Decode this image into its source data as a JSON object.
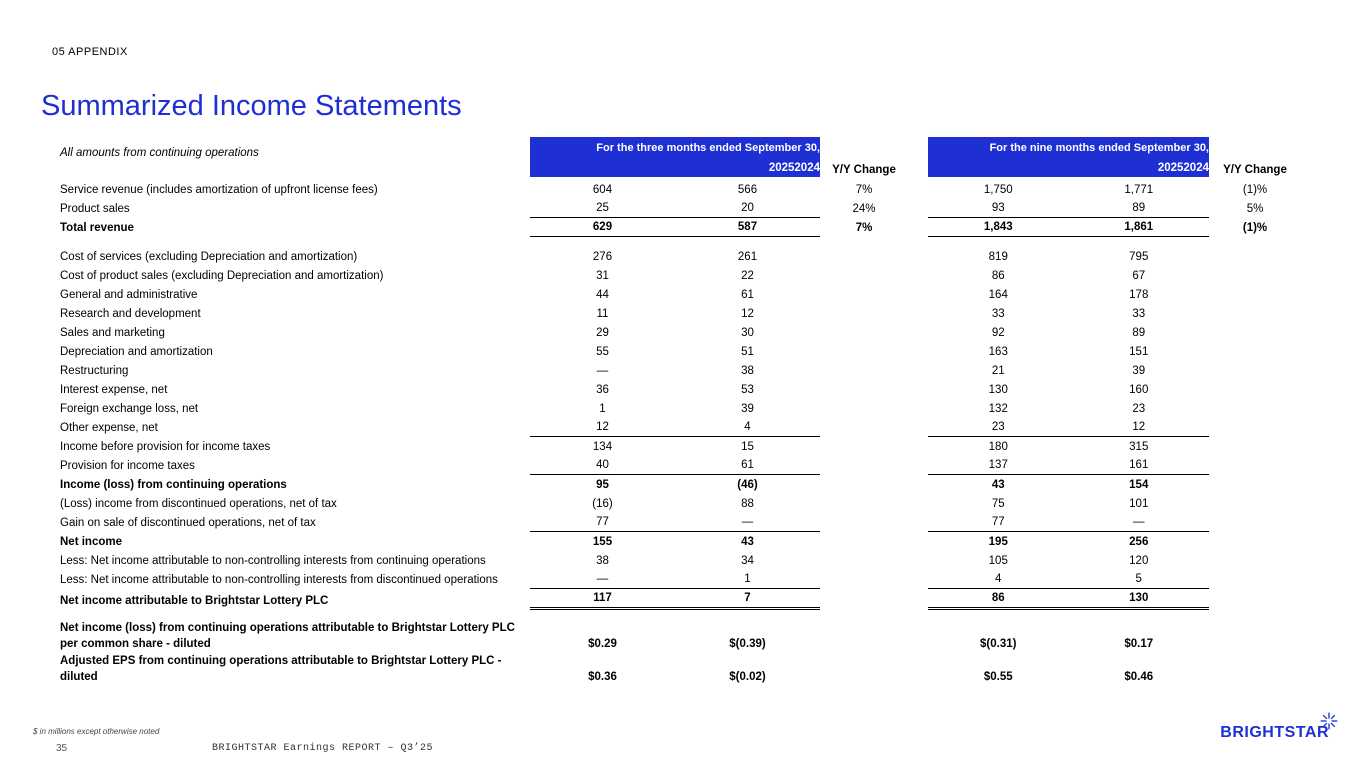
{
  "slide": {
    "section_label": "05 APPENDIX",
    "title": "Summarized Income Statements",
    "subtitle": "All amounts from continuing operations",
    "footnote": "$ in millions except otherwise noted",
    "page_number": "35",
    "footer_text": "BRIGHTSTAR Earnings REPORT – Q3’25",
    "logo_text": "BRIGHTSTAR"
  },
  "colors": {
    "accent_blue": "#1e2fd4"
  },
  "table": {
    "yy_change_label": "Y/Y Change",
    "group_headers": [
      {
        "title": "For the three months ended September 30,",
        "years": [
          "2025",
          "2024"
        ]
      },
      {
        "title": "For the nine months ended September 30,",
        "years": [
          "2025",
          "2024"
        ]
      }
    ],
    "rows": [
      {
        "label": "Service revenue (includes amortization of upfront license fees)",
        "values": [
          "604",
          "566",
          "7%",
          "1,750",
          "1,771",
          "(1)%"
        ],
        "bold": false,
        "rule": "none",
        "gap": false
      },
      {
        "label": "Product sales",
        "values": [
          "25",
          "20",
          "24%",
          "93",
          "89",
          "5%"
        ],
        "bold": false,
        "rule": "single",
        "gap": false
      },
      {
        "label": "Total revenue",
        "values": [
          "629",
          "587",
          "7%",
          "1,843",
          "1,861",
          "(1)%"
        ],
        "bold": true,
        "rule": "single",
        "gap": false
      },
      {
        "label": "Cost of services (excluding Depreciation and amortization)",
        "values": [
          "276",
          "261",
          "",
          "819",
          "795",
          ""
        ],
        "bold": false,
        "rule": "none",
        "gap": true
      },
      {
        "label": "Cost of product sales (excluding Depreciation and amortization)",
        "values": [
          "31",
          "22",
          "",
          "86",
          "67",
          ""
        ],
        "bold": false,
        "rule": "none",
        "gap": false
      },
      {
        "label": "General and administrative",
        "values": [
          "44",
          "61",
          "",
          "164",
          "178",
          ""
        ],
        "bold": false,
        "rule": "none",
        "gap": false
      },
      {
        "label": "Research and development",
        "values": [
          "11",
          "12",
          "",
          "33",
          "33",
          ""
        ],
        "bold": false,
        "rule": "none",
        "gap": false
      },
      {
        "label": "Sales and marketing",
        "values": [
          "29",
          "30",
          "",
          "92",
          "89",
          ""
        ],
        "bold": false,
        "rule": "none",
        "gap": false
      },
      {
        "label": "Depreciation and amortization",
        "values": [
          "55",
          "51",
          "",
          "163",
          "151",
          ""
        ],
        "bold": false,
        "rule": "none",
        "gap": false
      },
      {
        "label": "Restructuring",
        "values": [
          "—",
          "38",
          "",
          "21",
          "39",
          ""
        ],
        "bold": false,
        "rule": "none",
        "gap": false
      },
      {
        "label": "Interest expense, net",
        "values": [
          "36",
          "53",
          "",
          "130",
          "160",
          ""
        ],
        "bold": false,
        "rule": "none",
        "gap": false
      },
      {
        "label": "Foreign exchange loss, net",
        "values": [
          "1",
          "39",
          "",
          "132",
          "23",
          ""
        ],
        "bold": false,
        "rule": "none",
        "gap": false
      },
      {
        "label": "Other expense, net",
        "values": [
          "12",
          "4",
          "",
          "23",
          "12",
          ""
        ],
        "bold": false,
        "rule": "single",
        "gap": false
      },
      {
        "label": "Income before provision for income taxes",
        "values": [
          "134",
          "15",
          "",
          "180",
          "315",
          ""
        ],
        "bold": false,
        "rule": "none",
        "gap": false
      },
      {
        "label": "Provision for income taxes",
        "values": [
          "40",
          "61",
          "",
          "137",
          "161",
          ""
        ],
        "bold": false,
        "rule": "single",
        "gap": false
      },
      {
        "label": "Income (loss) from continuing operations",
        "values": [
          "95",
          "(46)",
          "",
          "43",
          "154",
          ""
        ],
        "bold": true,
        "rule": "none",
        "gap": false
      },
      {
        "label": "(Loss) income from discontinued operations, net of tax",
        "values": [
          "(16)",
          "88",
          "",
          "75",
          "101",
          ""
        ],
        "bold": false,
        "rule": "none",
        "gap": false
      },
      {
        "label": "Gain on sale of discontinued operations, net of tax",
        "values": [
          "77",
          "—",
          "",
          "77",
          "—",
          ""
        ],
        "bold": false,
        "rule": "single",
        "gap": false
      },
      {
        "label": "Net income",
        "values": [
          "155",
          "43",
          "",
          "195",
          "256",
          ""
        ],
        "bold": true,
        "rule": "none",
        "gap": false
      },
      {
        "label": "Less: Net income attributable to non-controlling interests from continuing operations",
        "values": [
          "38",
          "34",
          "",
          "105",
          "120",
          ""
        ],
        "bold": false,
        "rule": "none",
        "gap": false
      },
      {
        "label": "Less: Net income attributable to non-controlling interests from discontinued operations",
        "values": [
          "—",
          "1",
          "",
          "4",
          "5",
          ""
        ],
        "bold": false,
        "rule": "single",
        "gap": false
      },
      {
        "label": "Net income attributable to Brightstar Lottery PLC",
        "values": [
          "117",
          "7",
          "",
          "86",
          "130",
          ""
        ],
        "bold": true,
        "rule": "double",
        "gap": false
      },
      {
        "label": "Net income (loss) from continuing operations attributable to Brightstar Lottery PLC per common share - diluted",
        "values": [
          "$0.29",
          "$(0.39)",
          "",
          "$(0.31)",
          "$0.17",
          ""
        ],
        "bold": true,
        "rule": "none",
        "gap": true
      },
      {
        "label": "Adjusted EPS from continuing operations attributable to Brightstar Lottery PLC - diluted",
        "values": [
          "$0.36",
          "$(0.02)",
          "",
          "$0.55",
          "$0.46",
          ""
        ],
        "bold": true,
        "rule": "none",
        "gap": false
      }
    ]
  }
}
